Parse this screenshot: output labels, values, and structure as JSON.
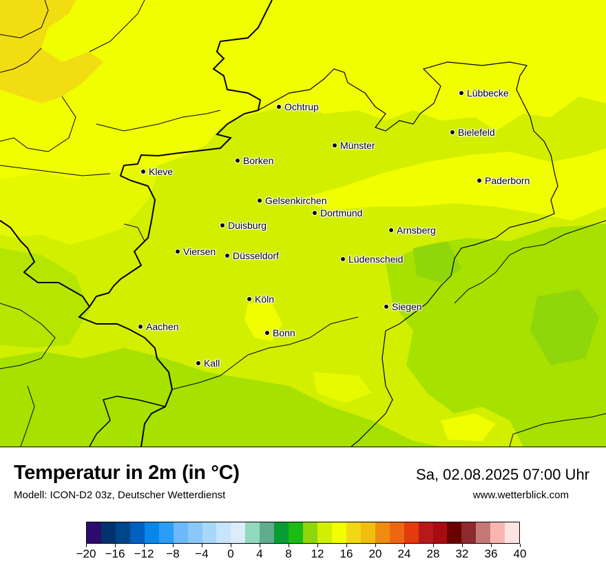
{
  "map": {
    "cities": [
      {
        "name": "Lübbecke"
      },
      {
        "name": "Ochtrup"
      },
      {
        "name": "Bielefeld"
      },
      {
        "name": "Münster"
      },
      {
        "name": "Borken"
      },
      {
        "name": "Kleve"
      },
      {
        "name": "Paderborn"
      },
      {
        "name": "Gelsenkirchen"
      },
      {
        "name": "Dortmund"
      },
      {
        "name": "Duisburg"
      },
      {
        "name": "Arnsberg"
      },
      {
        "name": "Viersen"
      },
      {
        "name": "Düsseldorf"
      },
      {
        "name": "Lüdenscheid"
      },
      {
        "name": "Köln"
      },
      {
        "name": "Siegen"
      },
      {
        "name": "Aachen"
      },
      {
        "name": "Bonn"
      },
      {
        "name": "Kall"
      }
    ]
  },
  "footer": {
    "title": "Temperatur in 2m (in °C)",
    "model": "Modell: ICON-D2 03z, Deutscher Wetterdienst",
    "datetime": "Sa, 02.08.2025 07:00 Uhr",
    "site": "www.wetterblick.com"
  },
  "colorbar": {
    "colors": [
      "#2d0a6e",
      "#00336b",
      "#00458a",
      "#0060bf",
      "#0a86e8",
      "#2a9df7",
      "#6db9f7",
      "#8ac8f7",
      "#a7d8fa",
      "#c6e4fb",
      "#dbecfb",
      "#93d9be",
      "#5fad8c",
      "#0a9b32",
      "#1cbb16",
      "#8fd60a",
      "#d1f000",
      "#f2ff00",
      "#f1d812",
      "#f1be0d",
      "#f08c12",
      "#ec6713",
      "#e43a0d",
      "#b5191a",
      "#a80c13",
      "#6a0000",
      "#8c2a2e",
      "#c57878",
      "#f9b6b0",
      "#ffe3e0"
    ],
    "ticks": [
      "−20",
      "−16",
      "−12",
      "−8",
      "−4",
      "0",
      "4",
      "8",
      "12",
      "16",
      "20",
      "24",
      "28",
      "32",
      "36",
      "40"
    ]
  }
}
